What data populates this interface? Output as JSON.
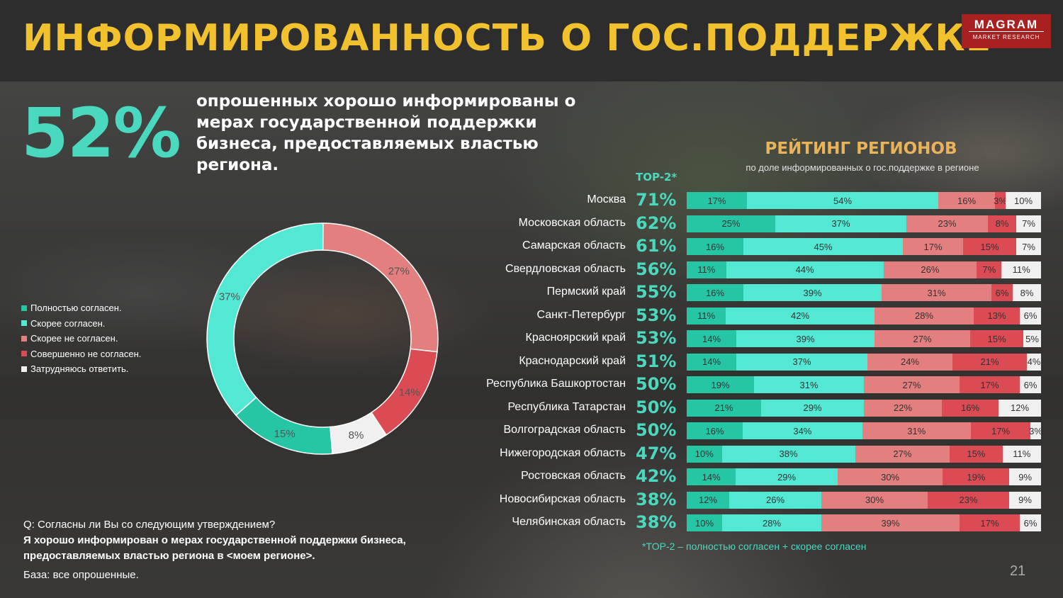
{
  "header": {
    "title": "ИНФОРМИРОВАННОСТЬ О ГОС.ПОДДЕРЖКЕ"
  },
  "logo": {
    "main": "MAGRAM",
    "sub": "MARKET RESEARCH"
  },
  "headline": {
    "percent": "52%",
    "text": "опрошенных хорошо информированы о мерах государственной поддержки бизнеса, предоставляемых властью региона."
  },
  "colors": {
    "fully_agree": "#26c6a4",
    "rather_agree": "#52e8d4",
    "rather_disagree": "#e37f7f",
    "fully_disagree": "#da4b53",
    "hard_to_say": "#f0f0f0",
    "accent_gold": "#f2c12e",
    "accent_teal": "#4ad8bf"
  },
  "chart_data": [
    {
      "type": "pie",
      "variant": "donut",
      "legend_position": "left",
      "slices": [
        {
          "name": "Полностью согласен.",
          "value": 15,
          "label": "15%"
        },
        {
          "name": "Скорее согласен.",
          "value": 37,
          "label": "37%"
        },
        {
          "name": "Скорее не согласен.",
          "value": 27,
          "label": "27%"
        },
        {
          "name": "Совершенно не согласен.",
          "value": 14,
          "label": "14%"
        },
        {
          "name": "Затрудняюсь ответить.",
          "value": 8,
          "label": "8%"
        }
      ]
    },
    {
      "type": "bar",
      "orientation": "horizontal",
      "stacked": true,
      "title": "РЕЙТИНГ РЕГИОНОВ",
      "subtitle": "по доле информированных о гос.поддержке в регионе",
      "top2_header": "TOP-2*",
      "footnote": "*TOP-2 – полностью согласен + скорее согласен",
      "categories": [
        "Москва",
        "Московская область",
        "Самарская область",
        "Свердловская область",
        "Пермский край",
        "Санкт-Петербург",
        "Красноярский край",
        "Краснодарский край",
        "Республика Башкортостан",
        "Республика Татарстан",
        "Волгоградская область",
        "Нижегородская область",
        "Ростовская область",
        "Новосибирская область",
        "Челябинская область"
      ],
      "top2": [
        "71%",
        "62%",
        "61%",
        "56%",
        "55%",
        "53%",
        "53%",
        "51%",
        "50%",
        "50%",
        "50%",
        "47%",
        "42%",
        "38%",
        "38%"
      ],
      "series": [
        {
          "name": "Полностью согласен.",
          "values": [
            17,
            25,
            16,
            11,
            16,
            11,
            14,
            14,
            19,
            21,
            16,
            10,
            14,
            12,
            10
          ]
        },
        {
          "name": "Скорее согласен.",
          "values": [
            54,
            37,
            45,
            44,
            39,
            42,
            39,
            37,
            31,
            29,
            34,
            38,
            29,
            26,
            28
          ]
        },
        {
          "name": "Скорее не согласен.",
          "values": [
            16,
            23,
            17,
            26,
            31,
            28,
            27,
            24,
            27,
            22,
            31,
            27,
            30,
            30,
            39
          ]
        },
        {
          "name": "Совершенно не согласен.",
          "values": [
            3,
            8,
            15,
            7,
            6,
            13,
            15,
            21,
            17,
            16,
            17,
            15,
            19,
            23,
            17
          ]
        },
        {
          "name": "Затрудняюсь ответить.",
          "values": [
            10,
            7,
            7,
            11,
            8,
            6,
            5,
            4,
            6,
            12,
            3,
            11,
            9,
            9,
            6
          ]
        }
      ]
    }
  ],
  "question": {
    "line1": "Q: Согласны ли Вы со следующим утверждением?",
    "line2": "Я хорошо информирован о мерах государственной поддержки бизнеса, предоставляемых властью региона в <моем регионе>."
  },
  "base": "База: все опрошенные.",
  "page_number": "21"
}
